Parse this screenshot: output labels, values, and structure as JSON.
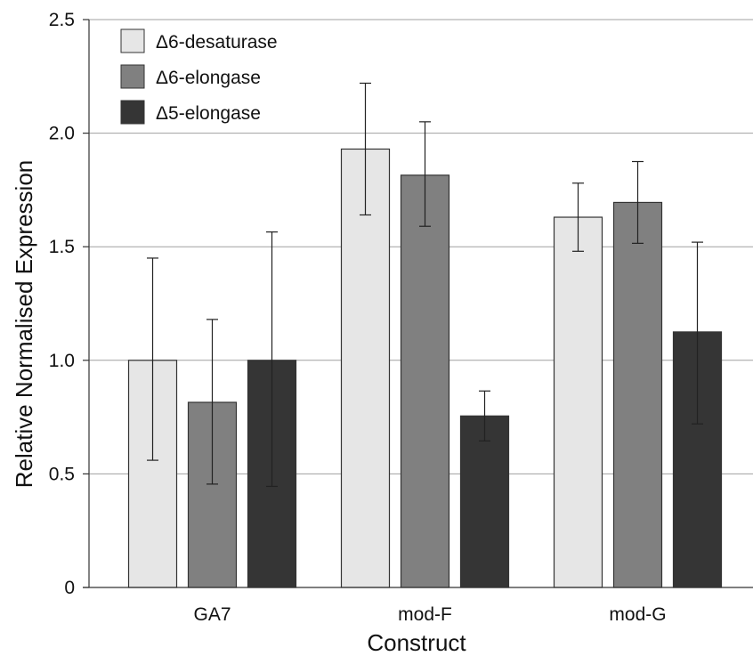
{
  "chart_data": {
    "type": "bar",
    "xlabel": "Construct",
    "ylabel": "Relative Normalised Expression",
    "ylim": [
      0,
      2.5
    ],
    "yticks": [
      {
        "value": 0,
        "label": "0"
      },
      {
        "value": 0.5,
        "label": "0.5"
      },
      {
        "value": 1.0,
        "label": "1.0"
      },
      {
        "value": 1.5,
        "label": "1.5"
      },
      {
        "value": 2.0,
        "label": "2.0"
      },
      {
        "value": 2.5,
        "label": "2.5"
      }
    ],
    "grid": true,
    "legend_position": "top-left",
    "categories": [
      "GA7",
      "mod-F",
      "mod-G"
    ],
    "series": [
      {
        "name": "Δ6-desaturase",
        "color": "#e6e6e6",
        "values": [
          1.0,
          1.93,
          1.63
        ],
        "err_low": [
          0.56,
          1.64,
          1.48
        ],
        "err_high": [
          1.45,
          2.22,
          1.78
        ]
      },
      {
        "name": "Δ6-elongase",
        "color": "#808080",
        "values": [
          0.815,
          1.815,
          1.695
        ],
        "err_low": [
          0.455,
          1.59,
          1.515
        ],
        "err_high": [
          1.18,
          2.05,
          1.875
        ]
      },
      {
        "name": "Δ5-elongase",
        "color": "#353535",
        "values": [
          1.0,
          0.755,
          1.125
        ],
        "err_low": [
          0.445,
          0.645,
          0.72
        ],
        "err_high": [
          1.565,
          0.865,
          1.52
        ]
      }
    ]
  }
}
